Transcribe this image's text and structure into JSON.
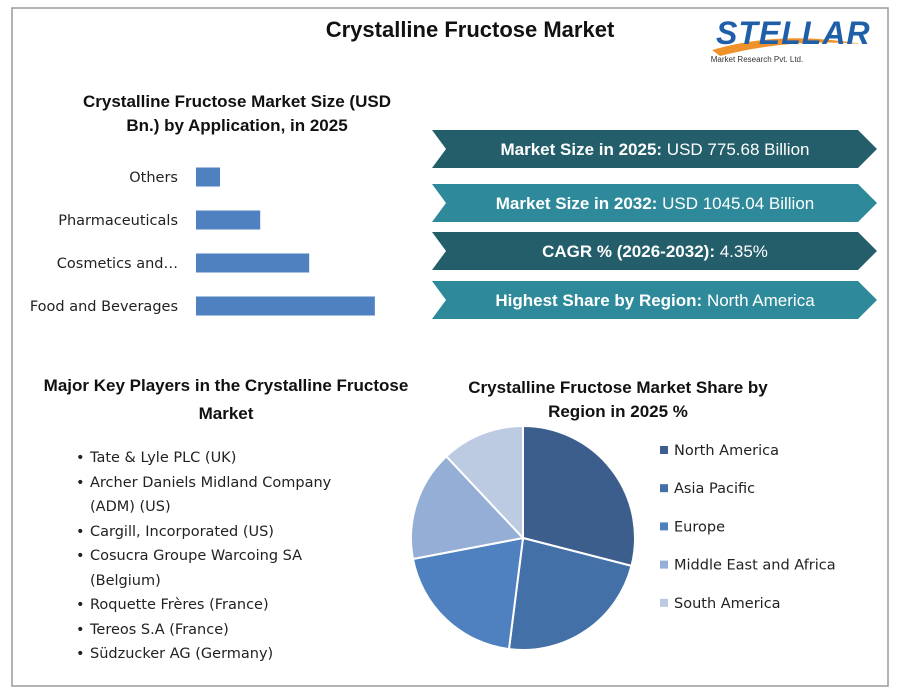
{
  "header": {
    "title": "Crystalline Fructose Market",
    "logo": {
      "name": "STELLAR",
      "tagline": "Market Research Pvt. Ltd."
    }
  },
  "chart_data": [
    {
      "type": "bar",
      "orientation": "horizontal",
      "title": "Crystalline Fructose Market Size (USD Bn.) by Application, in 2025",
      "categories": [
        "Others",
        "Pharmaceuticals",
        "Cosmetics and…",
        "Food and Beverages"
      ],
      "values": [
        49,
        131,
        231,
        365
      ],
      "color": "#4f81c0",
      "xlim": [
        0,
        400
      ]
    },
    {
      "type": "pie",
      "title": "Crystalline Fructose Market Share by Region in 2025 %",
      "categories": [
        "North America",
        "Asia Pacific",
        "Europe",
        "Middle East and Africa",
        "South America"
      ],
      "values": [
        29,
        23,
        20,
        16,
        12
      ],
      "colors": [
        "#3b5e8c",
        "#4470a8",
        "#4f81c0",
        "#95aed6",
        "#bccae2"
      ],
      "legend": "right"
    }
  ],
  "highlights": [
    {
      "label": "Market Size in 2025:",
      "value": "USD 775.68 Billion"
    },
    {
      "label": "Market Size in 2032:",
      "value": "USD 1045.04  Billion"
    },
    {
      "label": "CAGR % (2026-2032):",
      "value": "4.35%"
    },
    {
      "label": "Highest Share by Region:",
      "value": "North America"
    }
  ],
  "key_players": {
    "title": "Major Key Players in the Crystalline Fructose Market",
    "items": [
      "Tate & Lyle PLC (UK)",
      "Archer Daniels Midland Company (ADM) (US)",
      "Cargill, Incorporated (US)",
      "Cosucra Groupe Warcoing SA (Belgium)",
      "Roquette Frères (France)",
      "Tereos S.A (France)",
      "Südzucker AG (Germany)"
    ]
  }
}
